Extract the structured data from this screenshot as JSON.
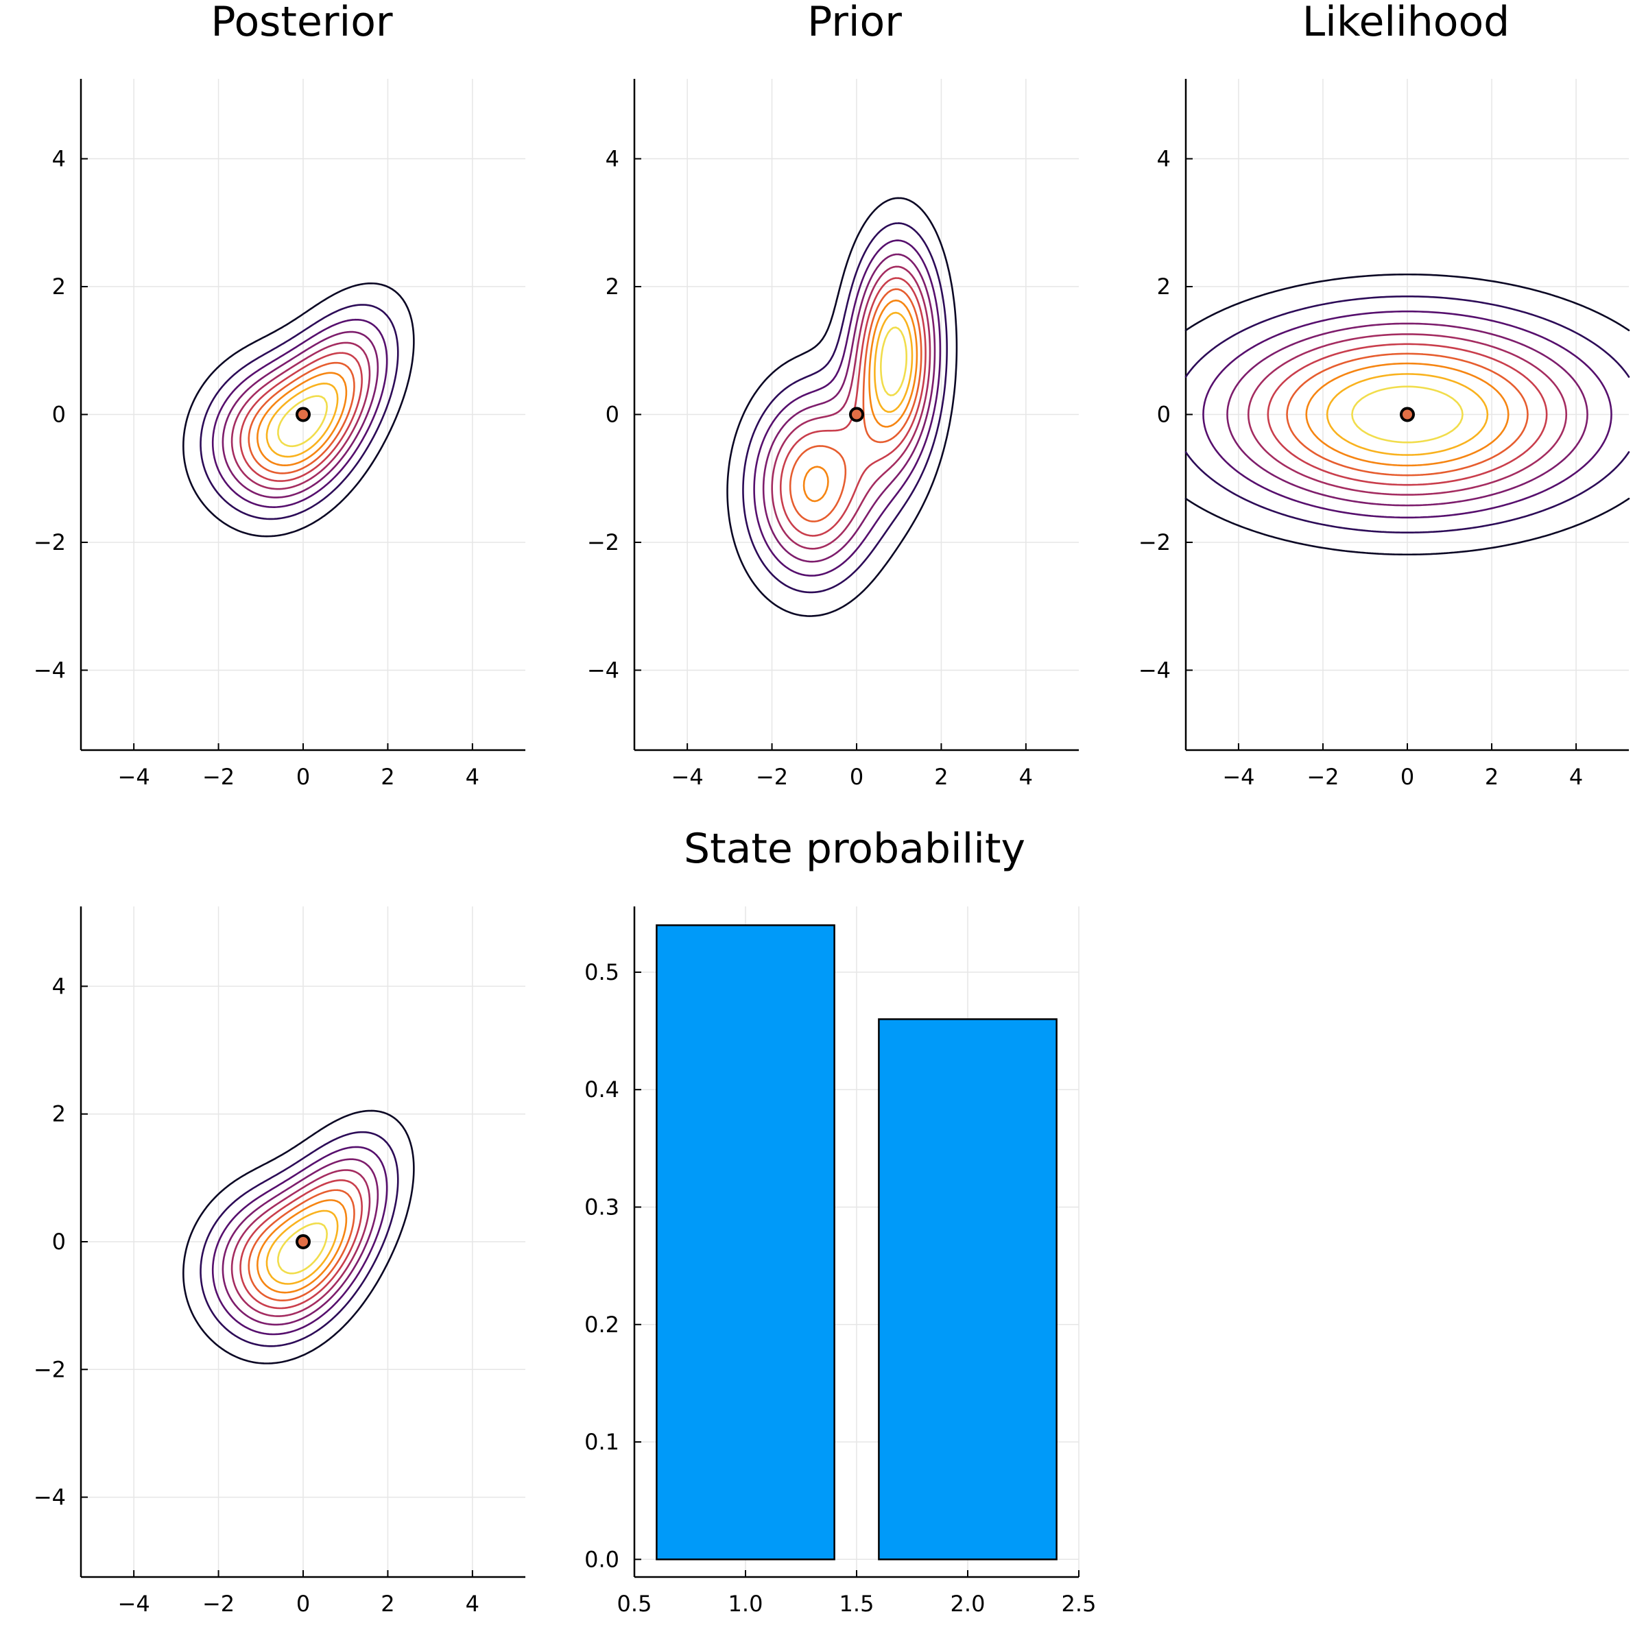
{
  "chart_data": [
    {
      "type": "contour",
      "title": "Posterior",
      "xlim": [
        -5.25,
        5.25
      ],
      "ylim": [
        -5.25,
        5.25
      ],
      "xticks": [
        -4,
        -2,
        0,
        2,
        4
      ],
      "yticks": [
        -4,
        -2,
        0,
        2,
        4
      ],
      "grid": true,
      "colormap": [
        "#0b0724",
        "#2c0b57",
        "#560f6d",
        "#7d1d6c",
        "#a42c60",
        "#c93e4c",
        "#e65d2f",
        "#f68512",
        "#f9b21e",
        "#f1dd4c"
      ],
      "density": {
        "components": [
          {
            "weight": 0.54,
            "mean": [
              0.6,
              0.25
            ],
            "cov": [
              [
                1.0,
                0.45
              ],
              [
                0.45,
                0.8
              ]
            ]
          },
          {
            "weight": 0.46,
            "mean": [
              -0.8,
              -0.3
            ],
            "cov": [
              [
                1.1,
                0.1
              ],
              [
                0.1,
                0.55
              ]
            ]
          }
        ],
        "levels": 10
      },
      "marker": {
        "x": 0,
        "y": 0,
        "color": "#e26f46"
      }
    },
    {
      "type": "contour",
      "title": "Prior",
      "xlim": [
        -5.25,
        5.25
      ],
      "ylim": [
        -5.25,
        5.25
      ],
      "xticks": [
        -4,
        -2,
        0,
        2,
        4
      ],
      "yticks": [
        -4,
        -2,
        0,
        2,
        4
      ],
      "grid": true,
      "colormap": [
        "#0b0724",
        "#2c0b57",
        "#560f6d",
        "#7d1d6c",
        "#a42c60",
        "#c93e4c",
        "#e65d2f",
        "#f68512",
        "#f9b21e",
        "#f1dd4c"
      ],
      "density": {
        "components": [
          {
            "weight": 0.5,
            "mean": [
              0.9,
              0.9
            ],
            "cov": [
              [
                0.45,
                0.05
              ],
              [
                0.05,
                1.3
              ]
            ]
          },
          {
            "weight": 0.5,
            "mean": [
              -1.0,
              -1.1
            ],
            "cov": [
              [
                1.0,
                0.05
              ],
              [
                0.05,
                1.0
              ]
            ]
          }
        ],
        "levels": 10
      },
      "marker": {
        "x": 0,
        "y": 0,
        "color": "#e26f46"
      }
    },
    {
      "type": "contour",
      "title": "Likelihood",
      "xlim": [
        -5.25,
        5.25
      ],
      "ylim": [
        -5.25,
        5.25
      ],
      "xticks": [
        -4,
        -2,
        0,
        2,
        4
      ],
      "yticks": [
        -4,
        -2,
        0,
        2,
        4
      ],
      "grid": true,
      "colormap": [
        "#0b0724",
        "#2c0b57",
        "#560f6d",
        "#7d1d6c",
        "#a42c60",
        "#c93e4c",
        "#e65d2f",
        "#f68512",
        "#f9b21e",
        "#f1dd4c"
      ],
      "density": {
        "components": [
          {
            "weight": 1.0,
            "mean": [
              0,
              0
            ],
            "cov": [
              [
                9.0,
                0.0
              ],
              [
                0.0,
                1.0
              ]
            ]
          }
        ],
        "levels": 10
      },
      "marker": {
        "x": 0,
        "y": 0,
        "color": "#e26f46"
      }
    },
    {
      "type": "contour",
      "title": "",
      "xlim": [
        -5.25,
        5.25
      ],
      "ylim": [
        -5.25,
        5.25
      ],
      "xticks": [
        -4,
        -2,
        0,
        2,
        4
      ],
      "yticks": [
        -4,
        -2,
        0,
        2,
        4
      ],
      "grid": true,
      "colormap": [
        "#0b0724",
        "#2c0b57",
        "#560f6d",
        "#7d1d6c",
        "#a42c60",
        "#c93e4c",
        "#e65d2f",
        "#f68512",
        "#f9b21e",
        "#f1dd4c"
      ],
      "density": {
        "components": [
          {
            "weight": 0.54,
            "mean": [
              0.6,
              0.25
            ],
            "cov": [
              [
                1.0,
                0.45
              ],
              [
                0.45,
                0.8
              ]
            ]
          },
          {
            "weight": 0.46,
            "mean": [
              -0.8,
              -0.3
            ],
            "cov": [
              [
                1.1,
                0.1
              ],
              [
                0.1,
                0.55
              ]
            ]
          }
        ],
        "levels": 10
      },
      "marker": {
        "x": 0,
        "y": 0,
        "color": "#e26f46"
      }
    },
    {
      "type": "bar",
      "title": "State probability",
      "x": [
        1,
        2
      ],
      "values": [
        0.54,
        0.46
      ],
      "bar_width": 0.8,
      "xlim": [
        0.5,
        2.5
      ],
      "ylim": [
        -0.015,
        0.556
      ],
      "xticks": [
        0.5,
        1.0,
        1.5,
        2.0,
        2.5
      ],
      "xtick_labels": [
        "0.5",
        "1.0",
        "1.5",
        "2.0",
        "2.5"
      ],
      "yticks": [
        0.0,
        0.1,
        0.2,
        0.3,
        0.4,
        0.5
      ],
      "ytick_labels": [
        "0.0",
        "0.1",
        "0.2",
        "0.3",
        "0.4",
        "0.5"
      ],
      "grid": true,
      "color": "#009af9"
    }
  ]
}
